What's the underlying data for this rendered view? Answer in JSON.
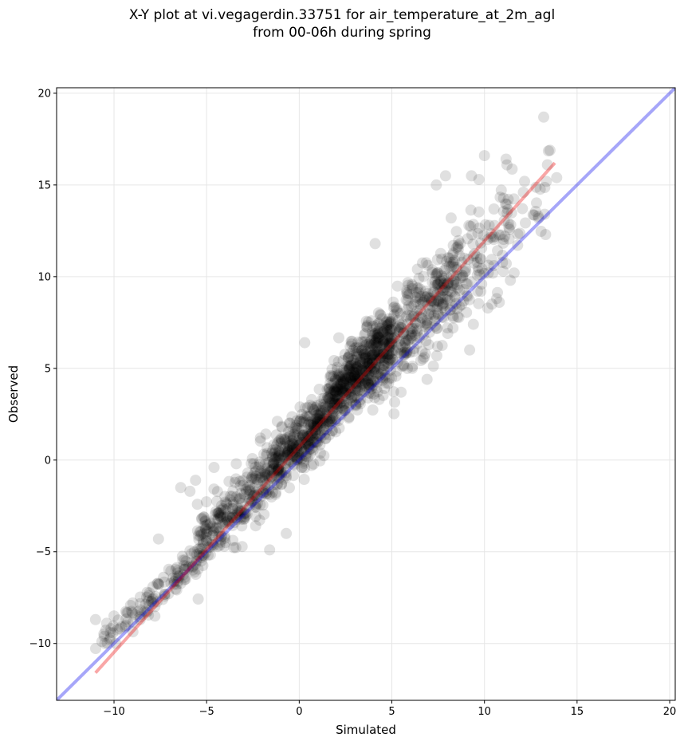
{
  "chart_data": {
    "type": "scatter",
    "title": "X-Y plot at vi.vegagerdin.33751 for air_temperature_at_2m_agl",
    "subtitle": "from 00-06h during spring",
    "xlabel": "Simulated",
    "ylabel": "Observed",
    "xlim": [
      -13.1,
      20.3
    ],
    "ylim": [
      -13.1,
      20.3
    ],
    "xticks": [
      -10,
      -5,
      0,
      5,
      10,
      15,
      20
    ],
    "yticks": [
      -10,
      -5,
      0,
      5,
      10,
      15,
      20
    ],
    "xtick_labels": [
      "−10",
      "−5",
      "0",
      "5",
      "10",
      "15",
      "20"
    ],
    "ytick_labels": [
      "−10",
      "−5",
      "0",
      "5",
      "10",
      "15",
      "20"
    ],
    "grid": true,
    "legend": false,
    "point_color": "#000000",
    "point_alpha": 0.12,
    "lines": [
      {
        "role": "one-to-one",
        "color": "#0000ee",
        "alpha": 0.35,
        "x": [
          -13.1,
          20.3
        ],
        "y": [
          -13.1,
          20.3
        ]
      },
      {
        "role": "regression",
        "color": "#ee0000",
        "alpha": 0.35,
        "x": [
          -11.0,
          13.8
        ],
        "y": [
          -11.6,
          16.2
        ]
      }
    ],
    "clusters": [
      {
        "x": [
          -11,
          -9
        ],
        "y_offset": 0.8,
        "y_spread": 0.5,
        "count": 25
      },
      {
        "x": [
          -9,
          -5.5
        ],
        "y_offset": 0.3,
        "y_spread": 0.7,
        "count": 90
      },
      {
        "x": [
          -5.5,
          -1.5
        ],
        "y_offset": 0.8,
        "y_spread": 1.4,
        "count": 260
      },
      {
        "x": [
          -1.5,
          1.5
        ],
        "y_offset": 0.9,
        "y_spread": 1.3,
        "count": 330
      },
      {
        "x": [
          1.5,
          5.0
        ],
        "y_offset": 1.5,
        "y_spread": 1.6,
        "count": 560
      },
      {
        "x": [
          5.0,
          8.5
        ],
        "y_offset": 1.4,
        "y_spread": 2.0,
        "count": 280
      },
      {
        "x": [
          8.5,
          11.5
        ],
        "y_offset": 1.5,
        "y_spread": 2.4,
        "count": 110
      },
      {
        "x": [
          11.5,
          14.0
        ],
        "y_offset": 1.4,
        "y_spread": 2.0,
        "count": 20
      }
    ],
    "points": [
      [
        -11.0,
        -8.7
      ],
      [
        -10.4,
        -8.9
      ],
      [
        -10.2,
        -9.7
      ],
      [
        -9.9,
        -10.0
      ],
      [
        -10.0,
        -8.5
      ],
      [
        -9.6,
        -9.1
      ],
      [
        -7.6,
        -4.3
      ],
      [
        -6.4,
        -1.5
      ],
      [
        -5.9,
        -1.7
      ],
      [
        -5.6,
        -1.1
      ],
      [
        -4.6,
        -0.4
      ],
      [
        -5.0,
        -3.9
      ],
      [
        -3.4,
        -0.2
      ],
      [
        -2.1,
        1.2
      ],
      [
        -1.6,
        -4.9
      ],
      [
        -0.7,
        -4.0
      ],
      [
        0.3,
        6.4
      ],
      [
        4.1,
        11.8
      ],
      [
        4.6,
        3.9
      ],
      [
        5.5,
        3.7
      ],
      [
        6.9,
        4.4
      ],
      [
        7.4,
        15.0
      ],
      [
        7.9,
        15.5
      ],
      [
        8.3,
        7.2
      ],
      [
        9.2,
        6.0
      ],
      [
        9.4,
        7.4
      ],
      [
        9.3,
        15.5
      ],
      [
        9.7,
        15.3
      ],
      [
        10.0,
        16.6
      ],
      [
        10.4,
        8.5
      ],
      [
        10.8,
        8.6
      ],
      [
        11.4,
        9.8
      ],
      [
        11.6,
        10.2
      ],
      [
        12.1,
        14.6
      ],
      [
        12.9,
        13.3
      ],
      [
        13.2,
        18.7
      ],
      [
        13.3,
        12.3
      ],
      [
        13.4,
        16.1
      ],
      [
        13.9,
        15.4
      ],
      [
        8.2,
        13.2
      ],
      [
        11.1,
        12.2
      ],
      [
        6.1,
        5.0
      ]
    ]
  }
}
